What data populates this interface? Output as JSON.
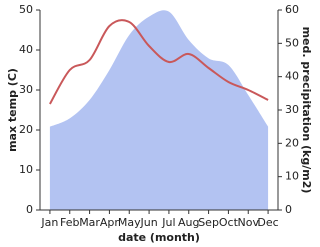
{
  "chart_data": {
    "type": "combo",
    "categories": [
      "Jan",
      "Feb",
      "Mar",
      "Apr",
      "May",
      "Jun",
      "Jul",
      "Aug",
      "Sep",
      "Oct",
      "Nov",
      "Dec"
    ],
    "x_label": "date (month)",
    "y_label": "max temp (C)",
    "y2_label": "med. precipitation (kg/m2)",
    "ylim": [
      0,
      50
    ],
    "yticks": [
      0,
      10,
      20,
      30,
      40,
      50
    ],
    "y2lim": [
      0,
      60
    ],
    "y2ticks": [
      0,
      10,
      20,
      30,
      40,
      50,
      60
    ],
    "series": [
      {
        "name": "med. precipitation",
        "type": "area",
        "axis": "y2",
        "color": "#b3c3f2",
        "values": [
          25,
          27.5,
          33,
          42,
          52.5,
          58,
          59.5,
          51,
          45.5,
          43.5,
          34.5,
          25
        ]
      },
      {
        "name": "max temp",
        "type": "line",
        "axis": "y",
        "color": "#c9585a",
        "values": [
          26.5,
          35,
          37.5,
          46,
          47,
          41,
          37,
          39,
          35.5,
          32,
          30,
          27.5
        ]
      }
    ]
  }
}
